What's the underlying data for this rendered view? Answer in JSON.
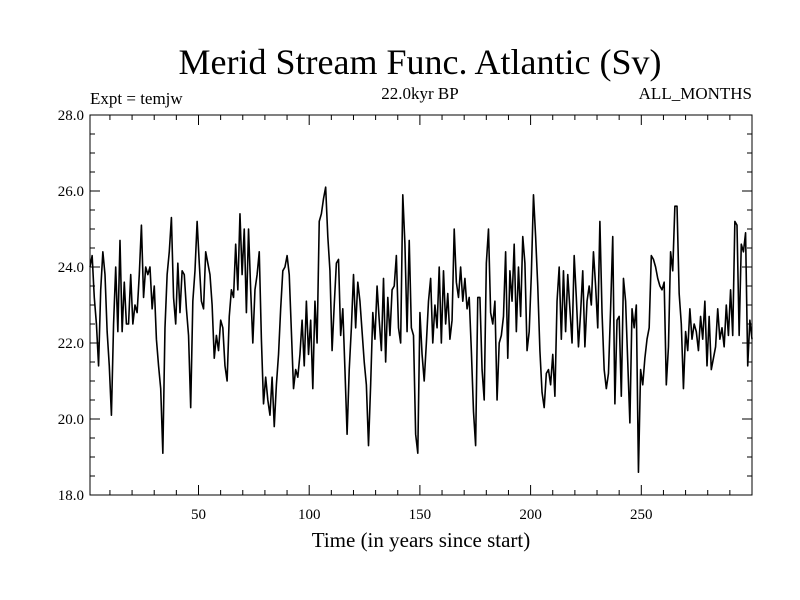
{
  "chart_data": {
    "type": "line",
    "title": "Merid Stream Func. Atlantic (Sv)",
    "subtitle": "22.0kyr BP",
    "left_note": "Expt = temjw",
    "right_note": "ALL_MONTHS",
    "xlabel": "Time (in years since start)",
    "ylabel": "",
    "xlim": [
      1,
      300
    ],
    "ylim": [
      18.0,
      28.0
    ],
    "xticks": [
      50,
      100,
      150,
      200,
      250
    ],
    "yticks": [
      "18.0",
      "20.0",
      "22.0",
      "24.0",
      "26.0",
      "28.0"
    ],
    "line_color": "#000000",
    "grid": false,
    "series": [
      {
        "values": [
          24.0,
          24.3,
          23.2,
          22.5,
          21.4,
          23.4,
          24.4,
          23.8,
          22.3,
          21.4,
          20.1,
          22.5,
          24.0,
          22.3,
          24.7,
          22.3,
          23.6,
          22.5,
          22.5,
          23.8,
          22.5,
          23.0,
          22.8,
          23.8,
          25.1,
          23.2,
          24.0,
          23.8,
          24.0,
          22.9,
          23.5,
          22.1,
          21.4,
          20.8,
          19.1,
          22.4,
          23.8,
          24.4,
          25.3,
          23.2,
          22.5,
          24.1,
          22.8,
          23.9,
          23.8,
          22.9,
          22.2,
          20.3,
          23.1,
          23.9,
          25.2,
          24.1,
          23.1,
          22.9,
          24.4,
          24.1,
          23.8,
          23.0,
          21.6,
          22.2,
          21.8,
          22.6,
          22.4,
          21.4,
          21.0,
          22.7,
          23.4,
          23.2,
          24.6,
          23.4,
          25.4,
          23.8,
          25.0,
          22.8,
          25.0,
          23.4,
          22.0,
          23.4,
          23.8,
          24.4,
          22.1,
          20.4,
          21.1,
          20.5,
          20.1,
          21.1,
          19.8,
          20.9,
          21.7,
          22.9,
          23.9,
          24.0,
          24.3,
          23.8,
          22.3,
          20.8,
          21.3,
          21.1,
          21.7,
          22.6,
          21.4,
          23.1,
          21.7,
          22.6,
          20.8,
          23.1,
          22.0,
          25.2,
          25.4,
          25.8,
          26.1,
          24.8,
          23.9,
          21.8,
          23.0,
          24.1,
          24.2,
          22.2,
          22.9,
          21.3,
          19.6,
          21.3,
          22.4,
          23.8,
          22.4,
          23.6,
          23.1,
          22.3,
          21.5,
          20.9,
          19.3,
          20.9,
          22.8,
          22.1,
          23.5,
          22.6,
          21.8,
          23.7,
          21.5,
          23.2,
          22.2,
          23.4,
          23.5,
          24.3,
          22.4,
          22.0,
          25.9,
          24.6,
          22.3,
          24.7,
          22.4,
          22.2,
          19.6,
          19.1,
          22.8,
          21.7,
          21.0,
          22.0,
          23.1,
          23.7,
          22.0,
          23.0,
          22.4,
          24.0,
          22.0,
          23.9,
          22.5,
          23.3,
          22.1,
          22.6,
          25.0,
          23.6,
          23.2,
          24.0,
          23.1,
          23.7,
          22.9,
          23.2,
          21.8,
          20.2,
          19.3,
          23.2,
          23.2,
          21.3,
          20.5,
          24.1,
          25.0,
          22.8,
          22.5,
          23.1,
          20.5,
          22.0,
          22.2,
          22.7,
          24.4,
          21.6,
          23.9,
          23.1,
          24.6,
          22.3,
          24.0,
          22.7,
          24.8,
          24.1,
          21.8,
          22.3,
          23.8,
          25.9,
          24.8,
          23.5,
          21.8,
          20.7,
          20.3,
          21.2,
          21.3,
          20.9,
          21.7,
          20.6,
          23.1,
          24.0,
          22.1,
          23.9,
          22.3,
          23.8,
          22.9,
          22.0,
          24.3,
          23.2,
          21.9,
          22.8,
          23.9,
          21.9,
          23.1,
          23.5,
          23.0,
          24.4,
          23.5,
          22.4,
          25.2,
          22.8,
          21.3,
          20.8,
          21.2,
          22.9,
          24.8,
          20.4,
          22.6,
          22.7,
          20.6,
          23.7,
          23.1,
          21.5,
          19.9,
          22.9,
          22.4,
          23.0,
          18.6,
          21.3,
          20.9,
          21.6,
          22.1,
          22.4,
          24.3,
          24.2,
          24.0,
          23.7,
          23.5,
          23.4,
          23.6,
          20.9,
          21.9,
          24.4,
          23.9,
          25.6,
          25.6,
          23.3,
          22.5,
          20.8,
          22.3,
          21.8,
          22.9,
          22.1,
          22.5,
          22.3,
          21.8,
          22.7,
          22.1,
          23.1,
          21.4,
          22.7,
          21.3,
          21.6,
          21.9,
          22.9,
          22.1,
          22.4,
          21.9,
          23.0,
          22.2,
          23.4,
          22.2,
          25.2,
          25.1,
          22.2,
          24.6,
          24.4,
          24.9,
          21.4,
          22.6,
          22.1
        ]
      }
    ]
  }
}
